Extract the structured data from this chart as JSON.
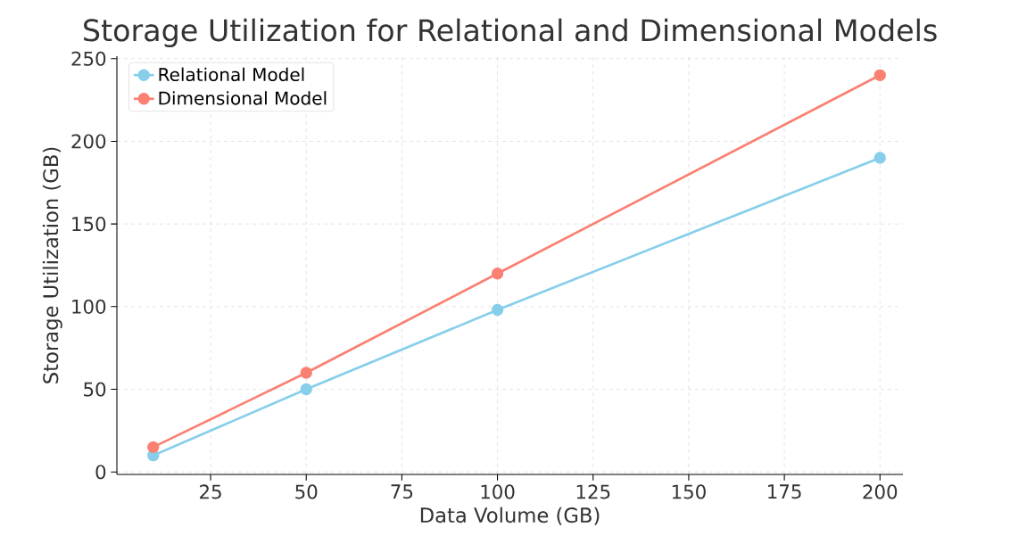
{
  "chart_data": {
    "type": "line",
    "title": "Storage Utilization for Relational and Dimensional Models",
    "xlabel": "Data Volume (GB)",
    "ylabel": "Storage Utilization (GB)",
    "x": [
      10,
      50,
      100,
      200
    ],
    "series": [
      {
        "name": "Relational Model",
        "color": "#87ceeb",
        "values": [
          10,
          50,
          98,
          190
        ]
      },
      {
        "name": "Dimensional Model",
        "color": "#fa8072",
        "values": [
          15,
          60,
          120,
          240
        ]
      }
    ],
    "xlim": [
      0.5,
      206
    ],
    "ylim": [
      -1.5,
      251.5
    ],
    "xticks": [
      25,
      50,
      75,
      100,
      125,
      150,
      175,
      200
    ],
    "yticks": [
      0,
      50,
      100,
      150,
      200,
      250
    ],
    "grid": true,
    "legend": "top left",
    "marker": "circle",
    "line_style": "solid"
  }
}
